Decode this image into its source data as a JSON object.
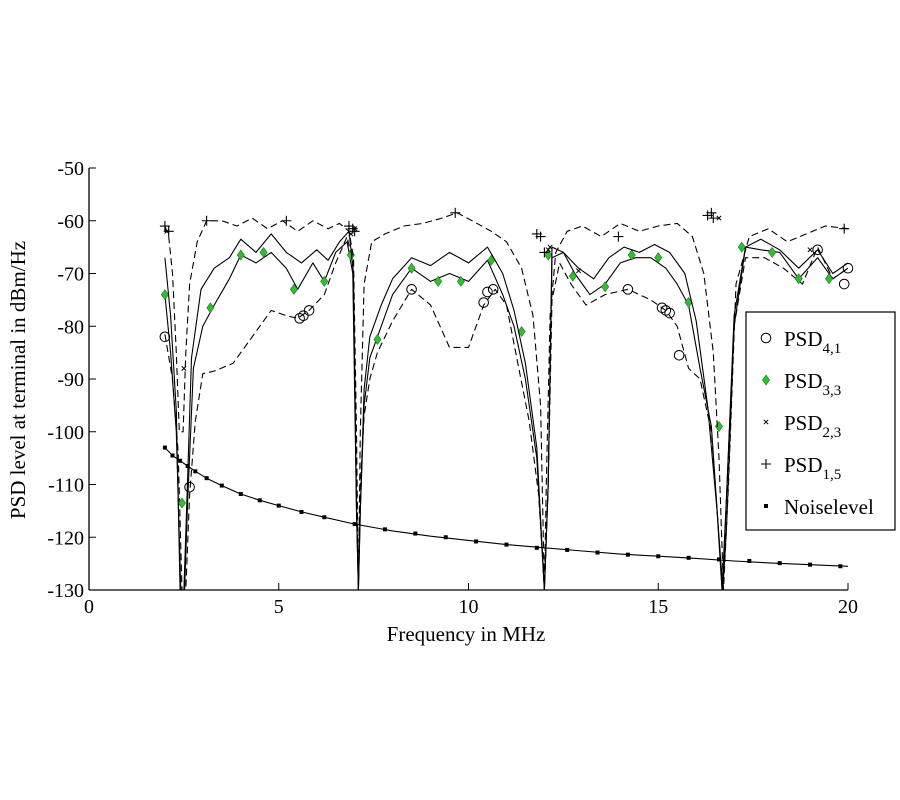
{
  "chart_data": {
    "type": "line",
    "title": "",
    "xlabel": "Frequency in MHz",
    "ylabel": "PSD level at terminal in dBm/Hz",
    "xlim": [
      0,
      20
    ],
    "ylim": [
      -130,
      -50
    ],
    "x_ticks": [
      0,
      5,
      10,
      15,
      20
    ],
    "y_ticks": [
      -50,
      -60,
      -70,
      -80,
      -90,
      -100,
      -110,
      -120,
      -130
    ],
    "x_tick_labels": [
      "0",
      "5",
      "10",
      "15",
      "20"
    ],
    "y_tick_labels": [
      "-50",
      "-60",
      "-70",
      "-80",
      "-90",
      "-100",
      "-110",
      "-120",
      "-130"
    ],
    "legend_position": "right",
    "series": [
      {
        "name": "PSD",
        "sub": "4,1",
        "marker": "circle",
        "color": "#000000",
        "line_style": "dashed",
        "x": [
          2.0,
          2.2,
          2.35,
          2.45,
          2.55,
          2.65,
          2.8,
          3.0,
          3.3,
          3.8,
          4.3,
          4.8,
          5.2,
          5.5,
          5.8,
          6.2,
          6.5,
          6.8,
          6.95,
          7.05,
          7.1,
          7.15,
          7.25,
          7.4,
          7.6,
          8.0,
          8.5,
          9.0,
          9.5,
          10.0,
          10.4,
          10.7,
          11.0,
          11.3,
          11.6,
          11.85,
          12.0,
          12.1,
          12.2,
          12.4,
          12.7,
          13.1,
          13.6,
          14.2,
          14.8,
          15.2,
          15.5,
          15.8,
          16.1,
          16.4,
          16.6,
          16.7,
          16.8,
          17.0,
          17.3,
          17.8,
          18.3,
          18.8,
          19.2,
          19.6,
          20.0
        ],
        "y": [
          -81.5,
          -90.0,
          -104.0,
          -130.0,
          -130.0,
          -112.0,
          -98.0,
          -89.0,
          -88.5,
          -87.0,
          -82.0,
          -77.0,
          -78.0,
          -78.5,
          -77.0,
          -74.0,
          -68.0,
          -63.0,
          -68.0,
          -110.0,
          -130.0,
          -110.0,
          -97.0,
          -90.0,
          -85.0,
          -79.0,
          -73.0,
          -76.0,
          -84.0,
          -84.0,
          -76.0,
          -73.0,
          -76.0,
          -87.0,
          -98.0,
          -112.0,
          -130.0,
          -110.0,
          -75.0,
          -68.0,
          -72.0,
          -76.0,
          -74.0,
          -73.0,
          -75.0,
          -77.0,
          -80.0,
          -88.0,
          -90.0,
          -100.0,
          -120.0,
          -130.0,
          -118.0,
          -80.0,
          -67.0,
          -67.0,
          -69.0,
          -72.0,
          -65.0,
          -71.0,
          -69.0
        ],
        "marker_x": [
          2.0,
          2.65,
          5.55,
          5.65,
          5.8,
          8.5,
          10.4,
          10.5,
          10.65,
          14.2,
          15.1,
          15.2,
          15.3,
          15.55,
          19.2,
          19.9,
          20.0
        ],
        "marker_y": [
          -82.0,
          -110.5,
          -78.5,
          -78.0,
          -77.0,
          -73.0,
          -75.5,
          -73.5,
          -73.0,
          -73.0,
          -76.5,
          -77.0,
          -77.5,
          -85.5,
          -65.5,
          -72.0,
          -69.0
        ]
      },
      {
        "name": "PSD",
        "sub": "3,3",
        "marker": "diamond",
        "color": "#2ec02e",
        "line_style": "solid",
        "x": [
          2.0,
          2.15,
          2.3,
          2.42,
          2.52,
          2.6,
          2.75,
          3.0,
          3.3,
          3.7,
          4.0,
          4.4,
          4.8,
          5.2,
          5.5,
          5.9,
          6.2,
          6.5,
          6.8,
          6.95,
          7.05,
          7.1,
          7.15,
          7.25,
          7.4,
          7.7,
          8.0,
          8.5,
          9.0,
          9.5,
          10.0,
          10.5,
          10.9,
          11.2,
          11.5,
          11.8,
          12.0,
          12.1,
          12.2,
          12.5,
          12.8,
          13.2,
          13.6,
          14.0,
          14.4,
          14.8,
          15.2,
          15.5,
          15.8,
          16.1,
          16.4,
          16.6,
          16.7,
          16.8,
          17.0,
          17.3,
          17.7,
          18.2,
          18.7,
          19.2,
          19.6,
          20.0
        ],
        "y": [
          -74.0,
          -85.0,
          -100.0,
          -130.0,
          -130.0,
          -113.0,
          -88.0,
          -80.0,
          -76.0,
          -71.0,
          -66.5,
          -68.0,
          -66.0,
          -69.0,
          -73.0,
          -68.0,
          -71.5,
          -66.0,
          -64.0,
          -70.0,
          -115.0,
          -130.0,
          -115.0,
          -95.0,
          -86.0,
          -80.0,
          -74.0,
          -69.0,
          -71.5,
          -70.0,
          -71.5,
          -67.5,
          -74.0,
          -80.0,
          -90.0,
          -105.0,
          -130.0,
          -110.0,
          -67.0,
          -66.0,
          -70.0,
          -74.0,
          -72.0,
          -68.0,
          -67.0,
          -67.0,
          -69.0,
          -72.0,
          -76.0,
          -88.0,
          -99.0,
          -120.0,
          -130.0,
          -112.0,
          -80.0,
          -65.0,
          -65.5,
          -66.0,
          -71.0,
          -67.0,
          -71.0,
          -69.0
        ],
        "marker_x": [
          2.0,
          2.45,
          3.2,
          4.0,
          4.6,
          5.4,
          6.2,
          6.9,
          7.6,
          8.5,
          9.2,
          9.8,
          10.6,
          11.4,
          12.1,
          12.75,
          13.6,
          14.3,
          15.0,
          15.8,
          16.6,
          17.2,
          18.0,
          18.7,
          19.5
        ],
        "marker_y": [
          -74.0,
          -113.5,
          -76.5,
          -66.5,
          -66.0,
          -73.0,
          -71.5,
          -66.5,
          -82.5,
          -69.0,
          -71.5,
          -71.5,
          -67.5,
          -81.0,
          -66.5,
          -70.5,
          -72.5,
          -66.5,
          -67.0,
          -75.5,
          -99.0,
          -65.0,
          -66.0,
          -71.0,
          -71.0
        ]
      },
      {
        "name": "PSD",
        "sub": "2,3",
        "marker": "x",
        "color": "#000000",
        "line_style": "solid",
        "x": [
          2.0,
          2.15,
          2.3,
          2.4,
          2.5,
          2.58,
          2.7,
          2.95,
          3.3,
          3.7,
          4.0,
          4.4,
          4.8,
          5.2,
          5.6,
          6.0,
          6.3,
          6.6,
          6.85,
          6.97,
          7.05,
          7.1,
          7.15,
          7.25,
          7.4,
          7.7,
          8.0,
          8.5,
          9.0,
          9.5,
          10.0,
          10.5,
          10.9,
          11.2,
          11.5,
          11.8,
          12.0,
          12.1,
          12.2,
          12.5,
          12.9,
          13.3,
          13.7,
          14.1,
          14.5,
          14.9,
          15.3,
          15.7,
          16.0,
          16.3,
          16.55,
          16.68,
          16.8,
          17.0,
          17.3,
          17.7,
          18.2,
          18.7,
          19.2,
          19.6,
          20.0
        ],
        "y": [
          -67.0,
          -78.0,
          -96.0,
          -130.0,
          -130.0,
          -113.0,
          -86.0,
          -73.0,
          -69.0,
          -67.0,
          -63.5,
          -66.0,
          -62.5,
          -66.0,
          -68.0,
          -65.5,
          -67.5,
          -64.0,
          -62.0,
          -70.0,
          -115.0,
          -130.0,
          -115.0,
          -92.0,
          -82.0,
          -76.0,
          -71.0,
          -67.0,
          -68.5,
          -66.0,
          -68.0,
          -65.0,
          -70.0,
          -77.0,
          -87.0,
          -103.0,
          -130.0,
          -110.0,
          -65.0,
          -66.0,
          -69.0,
          -71.0,
          -67.0,
          -65.0,
          -66.0,
          -64.5,
          -66.0,
          -70.0,
          -79.0,
          -95.0,
          -115.0,
          -130.0,
          -112.0,
          -78.0,
          -65.0,
          -63.5,
          -65.5,
          -69.0,
          -65.5,
          -70.0,
          -68.0
        ],
        "marker_x": [
          2.05,
          2.5,
          6.9,
          7.0,
          12.1,
          12.15,
          12.9,
          16.6,
          19.0
        ],
        "marker_y": [
          -62.0,
          -88.0,
          -62.5,
          -61.5,
          -65.5,
          -65.0,
          -69.5,
          -59.5,
          -65.5
        ]
      },
      {
        "name": "PSD",
        "sub": "1,5",
        "marker": "plus",
        "color": "#000000",
        "line_style": "dashed",
        "x": [
          2.0,
          2.1,
          2.2,
          2.3,
          2.38,
          2.48,
          2.55,
          2.65,
          2.85,
          3.1,
          3.5,
          3.9,
          4.3,
          4.7,
          5.1,
          5.5,
          5.9,
          6.3,
          6.6,
          6.85,
          6.97,
          7.05,
          7.1,
          7.15,
          7.25,
          7.45,
          7.8,
          8.3,
          8.8,
          9.3,
          9.7,
          10.1,
          10.6,
          11.0,
          11.4,
          11.7,
          11.9,
          12.0,
          12.05,
          12.15,
          12.3,
          12.6,
          13.0,
          13.5,
          14.0,
          14.5,
          15.0,
          15.5,
          15.9,
          16.2,
          16.45,
          16.6,
          16.72,
          16.85,
          17.05,
          17.4,
          17.9,
          18.4,
          18.9,
          19.4,
          20.0
        ],
        "y": [
          -61.0,
          -63.0,
          -70.0,
          -85.0,
          -100.0,
          -100.0,
          -85.0,
          -72.0,
          -64.0,
          -60.0,
          -60.0,
          -61.0,
          -59.5,
          -61.5,
          -60.0,
          -62.0,
          -60.0,
          -61.5,
          -60.5,
          -62.0,
          -67.0,
          -100.0,
          -130.0,
          -100.0,
          -72.0,
          -64.0,
          -62.5,
          -61.0,
          -60.5,
          -59.5,
          -58.5,
          -60.0,
          -62.0,
          -64.0,
          -69.0,
          -78.0,
          -95.0,
          -130.0,
          -110.0,
          -78.0,
          -66.0,
          -62.0,
          -61.0,
          -63.0,
          -60.5,
          -62.0,
          -61.0,
          -60.5,
          -63.0,
          -70.0,
          -85.0,
          -105.0,
          -130.0,
          -110.0,
          -72.0,
          -63.0,
          -61.5,
          -64.0,
          -62.5,
          -61.0,
          -61.5
        ],
        "marker_x": [
          2.0,
          2.1,
          3.1,
          5.2,
          6.85,
          6.95,
          7.0,
          9.65,
          11.8,
          11.9,
          12.0,
          13.95,
          16.3,
          16.4,
          16.45,
          19.9
        ],
        "marker_y": [
          -61.0,
          -62.0,
          -60.0,
          -60.0,
          -61.0,
          -61.5,
          -62.0,
          -58.5,
          -62.5,
          -63.0,
          -66.0,
          -63.0,
          -59.0,
          -58.5,
          -59.5,
          -61.5
        ]
      },
      {
        "name": "Noiselevel",
        "sub": "",
        "marker": "dot",
        "color": "#000000",
        "line_style": "solid",
        "x": [
          2.0,
          2.2,
          2.4,
          2.6,
          2.8,
          3.1,
          3.5,
          4.0,
          4.5,
          5.0,
          5.6,
          6.2,
          7.0,
          8.0,
          9.0,
          10.0,
          11.0,
          12.0,
          13.0,
          14.0,
          15.0,
          16.0,
          17.0,
          18.0,
          19.0,
          20.0
        ],
        "y": [
          -103.0,
          -104.5,
          -105.5,
          -106.5,
          -107.5,
          -108.8,
          -110.2,
          -111.8,
          -113.0,
          -114.0,
          -115.2,
          -116.2,
          -117.5,
          -118.8,
          -119.8,
          -120.6,
          -121.4,
          -122.0,
          -122.6,
          -123.2,
          -123.6,
          -124.0,
          -124.5,
          -124.9,
          -125.2,
          -125.5
        ],
        "marker_x": [
          2.0,
          2.2,
          2.4,
          2.6,
          2.8,
          3.1,
          3.5,
          4.0,
          4.5,
          5.0,
          5.6,
          6.2,
          7.0,
          7.8,
          8.6,
          9.4,
          10.2,
          11.0,
          11.8,
          12.6,
          13.4,
          14.2,
          15.0,
          15.8,
          16.6,
          17.4,
          18.2,
          19.0,
          19.8
        ],
        "marker_y": [
          -103.0,
          -104.5,
          -105.5,
          -106.5,
          -107.5,
          -108.8,
          -110.2,
          -111.8,
          -113.0,
          -114.0,
          -115.2,
          -116.2,
          -117.5,
          -118.5,
          -119.3,
          -120.0,
          -120.8,
          -121.4,
          -122.0,
          -122.4,
          -122.9,
          -123.3,
          -123.6,
          -123.9,
          -124.2,
          -124.5,
          -124.9,
          -125.2,
          -125.5
        ]
      }
    ]
  }
}
